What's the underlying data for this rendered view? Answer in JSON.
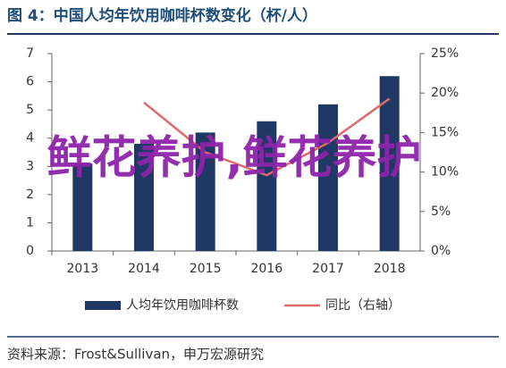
{
  "chart_data": {
    "type": "bar_line",
    "title": "图 4：中国人均年饮用咖啡杯数变化（杯/人）",
    "categories": [
      "2013",
      "2014",
      "2015",
      "2016",
      "2017",
      "2018"
    ],
    "series": [
      {
        "name": "人均年饮用咖啡杯数",
        "color": "#1f3864",
        "type": "bar",
        "values": [
          3.1,
          3.8,
          4.2,
          4.6,
          5.2,
          6.2
        ]
      },
      {
        "name": "同比（右轴）",
        "color": "#e06a6a",
        "type": "line",
        "axis": "y2",
        "values": [
          null,
          18.8,
          12.5,
          9.6,
          13.7,
          19.3
        ]
      }
    ],
    "ylim": [
      0,
      7
    ],
    "yticks": [
      0,
      1,
      2,
      3,
      4,
      5,
      6,
      7
    ],
    "y2lim": [
      0,
      25
    ],
    "y2ticks": [
      {
        "value": 0,
        "label": "0%"
      },
      {
        "value": 5,
        "label": "5%"
      },
      {
        "value": 10,
        "label": "10%"
      },
      {
        "value": 15,
        "label": "15%"
      },
      {
        "value": 20,
        "label": "20%"
      },
      {
        "value": 25,
        "label": "25%"
      }
    ],
    "source": "资料来源：Frost&Sullivan，申万宏源研究",
    "watermark": "鲜花养护,鲜花养护"
  }
}
